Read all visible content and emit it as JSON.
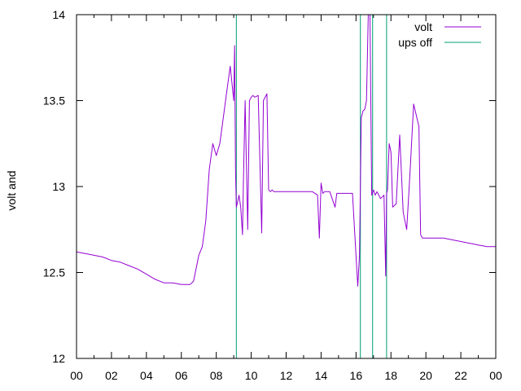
{
  "chart_data": {
    "type": "line",
    "title": "",
    "xlabel": "",
    "ylabel": "volt and",
    "xlim": [
      0,
      24
    ],
    "ylim": [
      12,
      14
    ],
    "x_ticks": [
      "00",
      "02",
      "04",
      "06",
      "08",
      "10",
      "12",
      "14",
      "16",
      "18",
      "20",
      "22",
      "00"
    ],
    "y_ticks": [
      "12",
      "12.5",
      "13",
      "13.5",
      "14"
    ],
    "grid": false,
    "legend_position": "top-right",
    "colors": {
      "volt": "#9400d3",
      "ups_off": "#009e73"
    },
    "series": [
      {
        "name": "volt",
        "x": [
          0,
          0.5,
          1,
          1.5,
          2,
          2.5,
          3,
          3.5,
          4,
          4.5,
          5,
          5.5,
          6,
          6.5,
          6.7,
          7.0,
          7.2,
          7.4,
          7.6,
          7.8,
          8.0,
          8.2,
          8.4,
          8.6,
          8.8,
          8.9,
          9.0,
          9.05,
          9.1,
          9.15,
          9.2,
          9.3,
          9.4,
          9.5,
          9.55,
          9.65,
          9.8,
          9.9,
          10.0,
          10.1,
          10.2,
          10.4,
          10.6,
          10.7,
          10.9,
          11.0,
          11.1,
          11.2,
          11.3,
          11.5,
          12,
          12.5,
          13,
          13.5,
          13.8,
          13.9,
          14.0,
          14.1,
          14.2,
          14.5,
          14.8,
          14.9,
          15.0,
          15.3,
          15.8,
          16.0,
          16.1,
          16.2,
          16.3,
          16.4,
          16.5,
          16.6,
          16.7,
          16.8,
          16.9,
          17.0,
          17.1,
          17.2,
          17.4,
          17.6,
          17.7,
          17.75,
          17.8,
          17.9,
          18.0,
          18.1,
          18.3,
          18.5,
          18.7,
          18.9,
          19.1,
          19.3,
          19.6,
          19.7,
          19.8,
          19.9,
          20.0,
          20.2,
          20.5,
          21,
          21.5,
          22,
          22.5,
          23,
          23.5,
          24
        ],
        "y": [
          12.62,
          12.61,
          12.6,
          12.59,
          12.57,
          12.56,
          12.54,
          12.52,
          12.49,
          12.46,
          12.44,
          12.44,
          12.43,
          12.43,
          12.45,
          12.6,
          12.65,
          12.8,
          13.1,
          13.25,
          13.18,
          13.25,
          13.4,
          13.55,
          13.7,
          13.6,
          13.5,
          13.82,
          13.1,
          12.88,
          12.9,
          12.95,
          12.88,
          12.72,
          13.0,
          13.5,
          12.75,
          13.5,
          13.52,
          13.53,
          13.52,
          13.53,
          12.73,
          13.5,
          13.54,
          12.98,
          12.97,
          12.98,
          12.97,
          12.97,
          12.97,
          12.97,
          12.97,
          12.97,
          12.95,
          12.7,
          13.02,
          12.96,
          12.97,
          12.97,
          12.88,
          12.96,
          12.96,
          12.96,
          12.96,
          12.6,
          12.42,
          12.6,
          13.4,
          13.44,
          13.45,
          13.5,
          14.0,
          14.0,
          12.95,
          12.98,
          12.95,
          12.97,
          12.93,
          12.95,
          12.48,
          12.96,
          12.98,
          13.25,
          13.2,
          12.88,
          12.9,
          13.3,
          12.85,
          12.75,
          13.1,
          13.48,
          13.35,
          12.72,
          12.7,
          12.7,
          12.7,
          12.7,
          12.7,
          12.7,
          12.69,
          12.68,
          12.67,
          12.66,
          12.65,
          12.65
        ]
      },
      {
        "name": "ups off",
        "events_x": [
          9.15,
          16.25,
          16.95,
          17.75
        ]
      }
    ]
  }
}
